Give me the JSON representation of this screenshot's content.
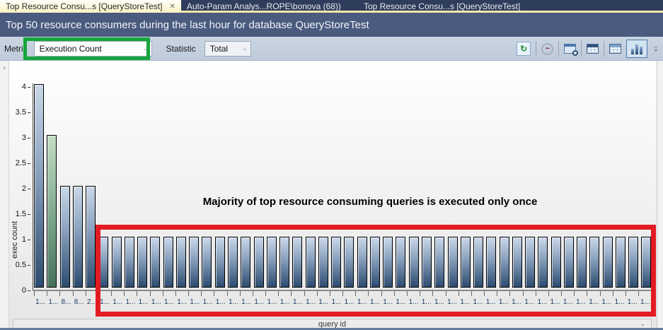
{
  "tabs": [
    {
      "label": "Top Resource Consu...s [QueryStoreTest]",
      "close_glyph": "✕",
      "active": true
    },
    {
      "label": "Auto-Param Analys...ROPE\\bonova (68))",
      "active": false
    },
    {
      "label": "Top Resource Consu...s [QueryStoreTest]",
      "active": false
    }
  ],
  "title": "Top 50 resource consumers during the last hour for database QueryStoreTest",
  "toolbar": {
    "metric_label": "Metric",
    "metric_value": "Execution Count",
    "statistic_label": "Statistic",
    "statistic_value": "Total",
    "combo_chevron": "⌄",
    "icons": {
      "refresh_glyph": "↻",
      "track_glyph": "~",
      "overflow_dash": "–",
      "overflow_chevron": "˅"
    }
  },
  "side": {
    "collapse_chevron": "›"
  },
  "chart_data": {
    "type": "bar",
    "title": "",
    "xlabel": "query id",
    "ylabel": "exec count",
    "ylim": [
      0,
      4
    ],
    "yticks": [
      0,
      0.5,
      1,
      1.5,
      2,
      2.5,
      3,
      3.5,
      4
    ],
    "grid": false,
    "legend": "none",
    "categories": [
      "1...",
      "1...",
      "8...",
      "8...",
      "2...",
      "1...",
      "1...",
      "1...",
      "1...",
      "1...",
      "1...",
      "1...",
      "1...",
      "1...",
      "1...",
      "1...",
      "1...",
      "1...",
      "1...",
      "1...",
      "1...",
      "1...",
      "1...",
      "1...",
      "1...",
      "1...",
      "1...",
      "1...",
      "1...",
      "1...",
      "1...",
      "1...",
      "1...",
      "1...",
      "1...",
      "1...",
      "1...",
      "1...",
      "1...",
      "1...",
      "1...",
      "1...",
      "1...",
      "1...",
      "1...",
      "1...",
      "1...",
      "1..."
    ],
    "values": [
      4,
      3,
      2,
      2,
      2,
      1,
      1,
      1,
      1,
      1,
      1,
      1,
      1,
      1,
      1,
      1,
      1,
      1,
      1,
      1,
      1,
      1,
      1,
      1,
      1,
      1,
      1,
      1,
      1,
      1,
      1,
      1,
      1,
      1,
      1,
      1,
      1,
      1,
      1,
      1,
      1,
      1,
      1,
      1,
      1,
      1,
      1,
      1
    ],
    "highlight_index": 1,
    "annotation": "Majority of top resource consuming queries is executed only once",
    "colors": {
      "bar_top": "#CBD8E9",
      "bar_bottom": "#2B4B6F",
      "highlight_top": "#C3DCC3",
      "highlight_bottom": "#45715A",
      "annotation_box_red": "#E31B23",
      "annotation_box_green": "#16A53C"
    }
  }
}
